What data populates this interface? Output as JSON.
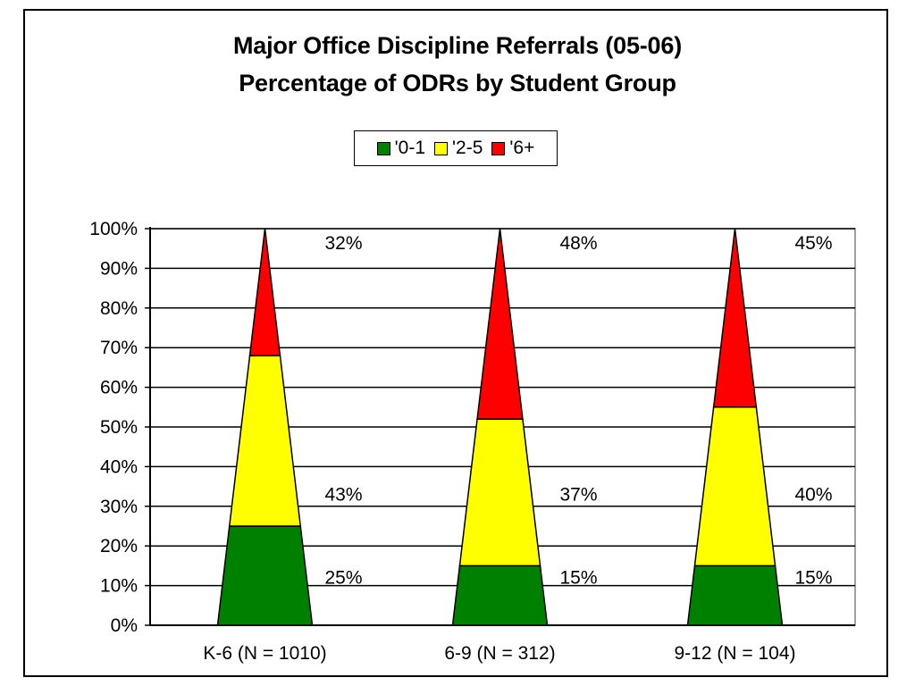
{
  "chart_data": {
    "type": "bar",
    "title": "Major Office Discipline Referrals (05-06)",
    "subtitle": "Percentage of ODRs by Student Group",
    "stacked": true,
    "shape": "cone",
    "categories": [
      "K-6 (N = 1010)",
      "6-9 (N = 312)",
      "9-12 (N = 104)"
    ],
    "series": [
      {
        "name": "'0-1",
        "color": "#008000",
        "values": [
          25,
          15,
          15
        ],
        "labels": [
          "25%",
          "15%",
          "15%"
        ]
      },
      {
        "name": "'2-5",
        "color": "#ffff00",
        "values": [
          43,
          37,
          40
        ],
        "labels": [
          "43%",
          "37%",
          "40%"
        ]
      },
      {
        "name": "'6+",
        "color": "#ff0000",
        "values": [
          32,
          48,
          45
        ],
        "labels": [
          "32%",
          "48%",
          "45%"
        ]
      }
    ],
    "ylim": [
      0,
      100
    ],
    "yticks": [
      "0%",
      "10%",
      "20%",
      "30%",
      "40%",
      "50%",
      "60%",
      "70%",
      "80%",
      "90%",
      "100%"
    ],
    "grid": true,
    "legend_position": "top"
  }
}
